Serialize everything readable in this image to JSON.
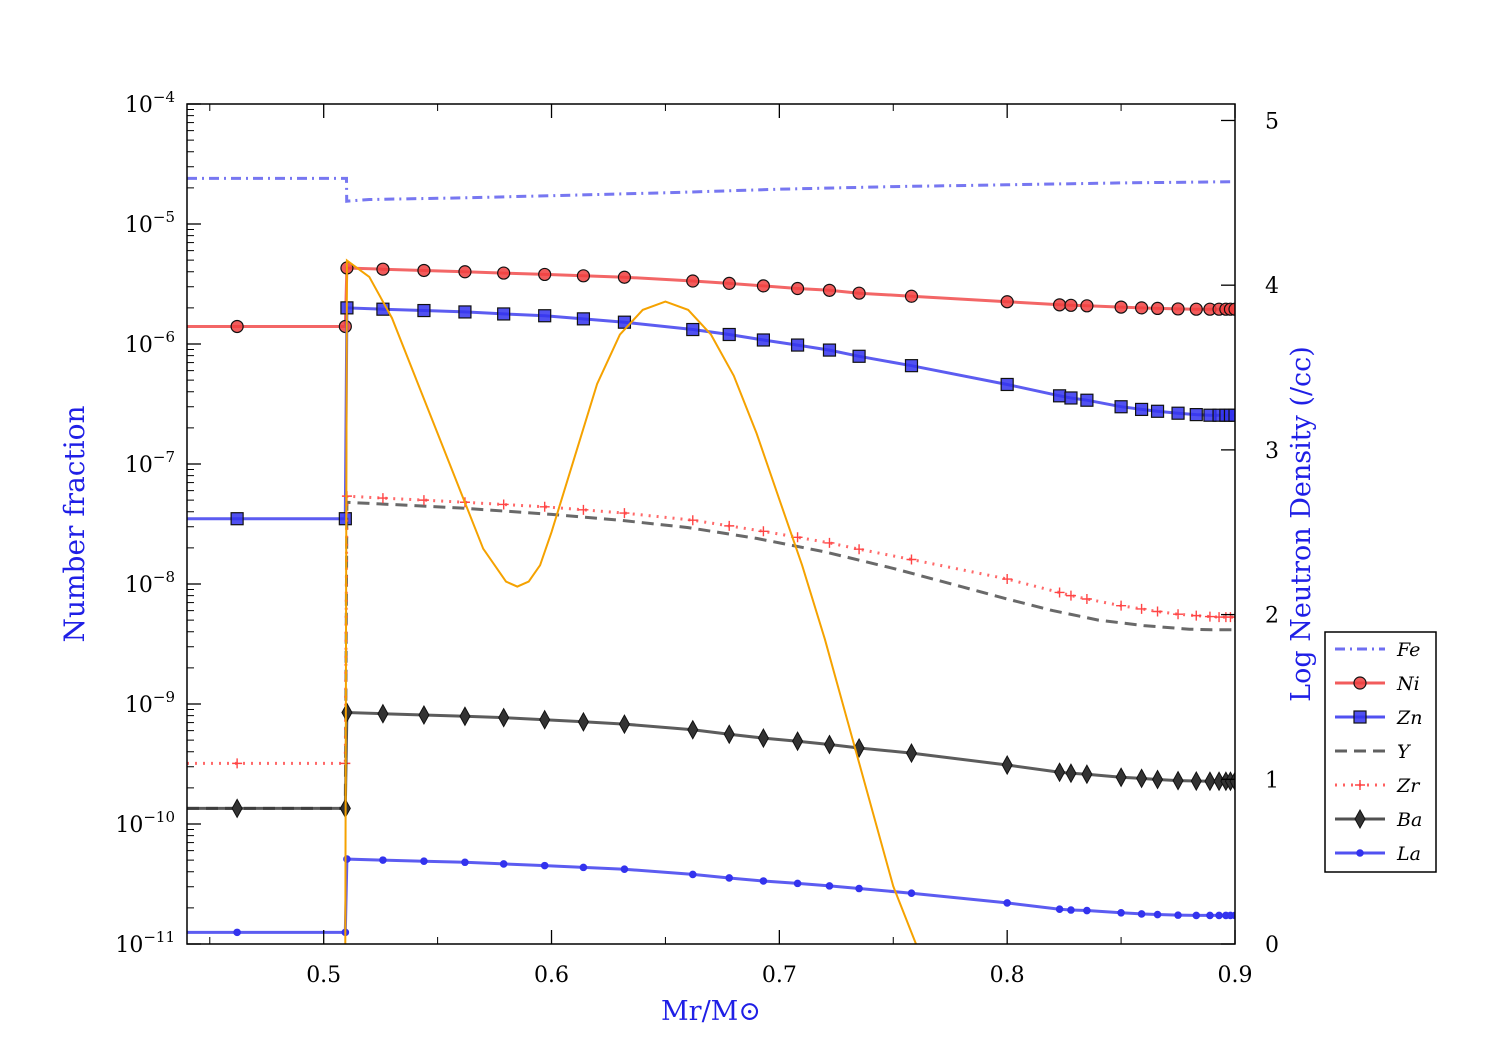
{
  "chart_data": {
    "type": "line",
    "xlabel": "Mr/M⊙",
    "ylabel": "Number fraction",
    "y2label": "Log Neutron Density (/cc)",
    "xlim": [
      0.44,
      0.9
    ],
    "ylim": [
      1e-11,
      0.0001
    ],
    "yscale": "log",
    "y2lim": [
      0,
      5.1
    ],
    "x_ticks": [
      0.5,
      0.6,
      0.7,
      0.8,
      0.9
    ],
    "x_tick_labels": [
      "0.5",
      "0.6",
      "0.7",
      "0.8",
      "0.9"
    ],
    "y_ticks": [
      1e-11,
      1e-10,
      1e-09,
      1e-08,
      1e-07,
      1e-06,
      1e-05,
      0.0001
    ],
    "y_tick_exponents": [
      "−11",
      "−10",
      "−9",
      "−8",
      "−7",
      "−6",
      "−5",
      "−4"
    ],
    "y_tick_base": "10",
    "y2_ticks": [
      0,
      1,
      2,
      3,
      4,
      5
    ],
    "y2_tick_labels": [
      "0",
      "1",
      "2",
      "3",
      "4",
      "5"
    ],
    "grid": false,
    "legend_position": "right",
    "series": [
      {
        "name": "Fe",
        "color": "#5555ee",
        "style": "dashdot",
        "marker": "none",
        "x": [
          0.44,
          0.51,
          0.5101,
          0.52,
          0.56,
          0.6,
          0.65,
          0.7,
          0.75,
          0.8,
          0.85,
          0.9
        ],
        "y": [
          2.4e-05,
          2.4e-05,
          1.55e-05,
          1.6e-05,
          1.65e-05,
          1.72e-05,
          1.82e-05,
          1.95e-05,
          2.05e-05,
          2.12e-05,
          2.2e-05,
          2.25e-05
        ]
      },
      {
        "name": "Ni",
        "color": "#f04040",
        "style": "solid",
        "marker": "circle",
        "x": [
          0.44,
          0.462,
          0.5095,
          0.5102,
          0.526,
          0.544,
          0.562,
          0.579,
          0.597,
          0.614,
          0.632,
          0.662,
          0.678,
          0.693,
          0.708,
          0.722,
          0.735,
          0.758,
          0.8,
          0.823,
          0.828,
          0.835,
          0.85,
          0.859,
          0.866,
          0.875,
          0.883,
          0.889,
          0.893,
          0.896,
          0.898,
          0.9
        ],
        "y": [
          1.4e-06,
          1.4e-06,
          1.4e-06,
          4.3e-06,
          4.2e-06,
          4.1e-06,
          4e-06,
          3.9e-06,
          3.8e-06,
          3.7e-06,
          3.6e-06,
          3.35e-06,
          3.2e-06,
          3.05e-06,
          2.9e-06,
          2.8e-06,
          2.65e-06,
          2.5e-06,
          2.25e-06,
          2.12e-06,
          2.1e-06,
          2.08e-06,
          2.03e-06,
          2e-06,
          1.98e-06,
          1.96e-06,
          1.95e-06,
          1.95e-06,
          1.95e-06,
          1.95e-06,
          1.95e-06,
          1.95e-06
        ],
        "marker_x": [
          0.462,
          0.5095,
          0.5102,
          0.526,
          0.544,
          0.562,
          0.579,
          0.597,
          0.614,
          0.632,
          0.662,
          0.678,
          0.693,
          0.708,
          0.722,
          0.735,
          0.758,
          0.8,
          0.823,
          0.828,
          0.835,
          0.85,
          0.859,
          0.866,
          0.875,
          0.883,
          0.889,
          0.893,
          0.896,
          0.898,
          0.9
        ]
      },
      {
        "name": "Zn",
        "color": "#3333ee",
        "style": "solid",
        "marker": "square",
        "x": [
          0.44,
          0.462,
          0.5095,
          0.5102,
          0.526,
          0.544,
          0.562,
          0.579,
          0.597,
          0.614,
          0.632,
          0.662,
          0.678,
          0.693,
          0.708,
          0.722,
          0.735,
          0.758,
          0.8,
          0.823,
          0.828,
          0.835,
          0.85,
          0.859,
          0.866,
          0.875,
          0.883,
          0.889,
          0.893,
          0.896,
          0.898,
          0.9
        ],
        "y": [
          3.5e-08,
          3.5e-08,
          3.5e-08,
          2e-06,
          1.95e-06,
          1.9e-06,
          1.85e-06,
          1.78e-06,
          1.72e-06,
          1.62e-06,
          1.52e-06,
          1.32e-06,
          1.2e-06,
          1.08e-06,
          9.8e-07,
          8.9e-07,
          7.9e-07,
          6.6e-07,
          4.6e-07,
          3.7e-07,
          3.55e-07,
          3.4e-07,
          3e-07,
          2.85e-07,
          2.75e-07,
          2.65e-07,
          2.58e-07,
          2.55e-07,
          2.55e-07,
          2.55e-07,
          2.55e-07,
          2.55e-07
        ],
        "marker_x": [
          0.462,
          0.5095,
          0.5102,
          0.526,
          0.544,
          0.562,
          0.579,
          0.597,
          0.614,
          0.632,
          0.662,
          0.678,
          0.693,
          0.708,
          0.722,
          0.735,
          0.758,
          0.8,
          0.823,
          0.828,
          0.835,
          0.85,
          0.859,
          0.866,
          0.875,
          0.883,
          0.889,
          0.893,
          0.896,
          0.898,
          0.9
        ]
      },
      {
        "name": "Y",
        "color": "#444444",
        "style": "dashed",
        "marker": "none",
        "x": [
          0.44,
          0.5095,
          0.5102,
          0.53,
          0.56,
          0.6,
          0.63,
          0.66,
          0.69,
          0.72,
          0.75,
          0.78,
          0.8,
          0.82,
          0.84,
          0.86,
          0.88,
          0.89,
          0.9
        ],
        "y": [
          1.35e-10,
          1.35e-10,
          4.8e-08,
          4.6e-08,
          4.3e-08,
          3.8e-08,
          3.4e-08,
          2.95e-08,
          2.4e-08,
          1.85e-08,
          1.35e-08,
          9.5e-09,
          7.5e-09,
          6e-09,
          5e-09,
          4.5e-09,
          4.2e-09,
          4.15e-09,
          4.15e-09
        ]
      },
      {
        "name": "Zr",
        "color": "#ff4444",
        "style": "dotted",
        "marker": "plus",
        "x": [
          0.44,
          0.462,
          0.5095,
          0.5102,
          0.526,
          0.544,
          0.562,
          0.579,
          0.597,
          0.614,
          0.632,
          0.662,
          0.678,
          0.693,
          0.708,
          0.722,
          0.735,
          0.758,
          0.8,
          0.823,
          0.828,
          0.835,
          0.85,
          0.859,
          0.866,
          0.875,
          0.883,
          0.889,
          0.893,
          0.896,
          0.898,
          0.9
        ],
        "y": [
          3.2e-10,
          3.2e-10,
          3.2e-10,
          5.4e-08,
          5.2e-08,
          5e-08,
          4.8e-08,
          4.6e-08,
          4.4e-08,
          4.15e-08,
          3.9e-08,
          3.4e-08,
          3.05e-08,
          2.75e-08,
          2.45e-08,
          2.2e-08,
          1.95e-08,
          1.6e-08,
          1.1e-08,
          8.5e-09,
          8e-09,
          7.5e-09,
          6.6e-09,
          6.2e-09,
          5.9e-09,
          5.6e-09,
          5.45e-09,
          5.35e-09,
          5.3e-09,
          5.3e-09,
          5.3e-09,
          5.3e-09
        ],
        "marker_x": [
          0.462,
          0.5095,
          0.5102,
          0.526,
          0.544,
          0.562,
          0.579,
          0.597,
          0.614,
          0.632,
          0.662,
          0.678,
          0.693,
          0.708,
          0.722,
          0.735,
          0.758,
          0.8,
          0.823,
          0.828,
          0.835,
          0.85,
          0.859,
          0.866,
          0.875,
          0.883,
          0.889,
          0.893,
          0.896,
          0.898,
          0.9
        ]
      },
      {
        "name": "Ba",
        "color": "#333333",
        "style": "solid",
        "marker": "diamond",
        "x": [
          0.44,
          0.462,
          0.5095,
          0.5102,
          0.526,
          0.544,
          0.562,
          0.579,
          0.597,
          0.614,
          0.632,
          0.662,
          0.678,
          0.693,
          0.708,
          0.722,
          0.735,
          0.758,
          0.8,
          0.823,
          0.828,
          0.835,
          0.85,
          0.859,
          0.866,
          0.875,
          0.883,
          0.889,
          0.893,
          0.896,
          0.898,
          0.9
        ],
        "y": [
          1.35e-10,
          1.35e-10,
          1.35e-10,
          8.5e-10,
          8.3e-10,
          8.1e-10,
          7.9e-10,
          7.7e-10,
          7.4e-10,
          7.1e-10,
          6.8e-10,
          6.1e-10,
          5.6e-10,
          5.2e-10,
          4.9e-10,
          4.6e-10,
          4.3e-10,
          3.9e-10,
          3.1e-10,
          2.7e-10,
          2.65e-10,
          2.6e-10,
          2.45e-10,
          2.4e-10,
          2.35e-10,
          2.3e-10,
          2.28e-10,
          2.27e-10,
          2.27e-10,
          2.27e-10,
          2.27e-10,
          2.27e-10
        ],
        "marker_x": [
          0.462,
          0.5095,
          0.5102,
          0.526,
          0.544,
          0.562,
          0.579,
          0.597,
          0.614,
          0.632,
          0.662,
          0.678,
          0.693,
          0.708,
          0.722,
          0.735,
          0.758,
          0.8,
          0.823,
          0.828,
          0.835,
          0.85,
          0.859,
          0.866,
          0.875,
          0.883,
          0.889,
          0.893,
          0.896,
          0.898,
          0.9
        ]
      },
      {
        "name": "La",
        "color": "#3333ee",
        "style": "solid",
        "marker": "dot",
        "x": [
          0.44,
          0.462,
          0.5095,
          0.5102,
          0.526,
          0.544,
          0.562,
          0.579,
          0.597,
          0.614,
          0.632,
          0.662,
          0.678,
          0.693,
          0.708,
          0.722,
          0.735,
          0.758,
          0.8,
          0.823,
          0.828,
          0.835,
          0.85,
          0.859,
          0.866,
          0.875,
          0.883,
          0.889,
          0.893,
          0.896,
          0.898,
          0.9
        ],
        "y": [
          1.25e-11,
          1.25e-11,
          1.25e-11,
          5.1e-11,
          5e-11,
          4.9e-11,
          4.8e-11,
          4.65e-11,
          4.5e-11,
          4.35e-11,
          4.2e-11,
          3.8e-11,
          3.55e-11,
          3.35e-11,
          3.2e-11,
          3.05e-11,
          2.9e-11,
          2.65e-11,
          2.2e-11,
          1.95e-11,
          1.92e-11,
          1.9e-11,
          1.82e-11,
          1.78e-11,
          1.76e-11,
          1.74e-11,
          1.73e-11,
          1.73e-11,
          1.73e-11,
          1.73e-11,
          1.73e-11,
          1.73e-11
        ],
        "marker_x": [
          0.462,
          0.5095,
          0.5102,
          0.526,
          0.544,
          0.562,
          0.579,
          0.597,
          0.614,
          0.632,
          0.662,
          0.678,
          0.693,
          0.708,
          0.722,
          0.735,
          0.758,
          0.8,
          0.823,
          0.828,
          0.835,
          0.85,
          0.859,
          0.866,
          0.875,
          0.883,
          0.889,
          0.893,
          0.896,
          0.898,
          0.9
        ]
      },
      {
        "name": "",
        "color": "#f5a200",
        "style": "solid",
        "marker": "none",
        "axis": "right",
        "x": [
          0.5095,
          0.5102,
          0.52,
          0.53,
          0.54,
          0.55,
          0.56,
          0.57,
          0.58,
          0.585,
          0.59,
          0.595,
          0.6,
          0.61,
          0.62,
          0.63,
          0.64,
          0.65,
          0.66,
          0.67,
          0.68,
          0.69,
          0.7,
          0.71,
          0.72,
          0.73,
          0.74,
          0.75,
          0.76
        ],
        "y": [
          0.0,
          4.15,
          4.05,
          3.8,
          3.45,
          3.1,
          2.75,
          2.4,
          2.2,
          2.17,
          2.2,
          2.3,
          2.5,
          2.95,
          3.4,
          3.7,
          3.85,
          3.9,
          3.85,
          3.7,
          3.45,
          3.1,
          2.7,
          2.3,
          1.85,
          1.35,
          0.85,
          0.35,
          0.0
        ]
      }
    ]
  }
}
